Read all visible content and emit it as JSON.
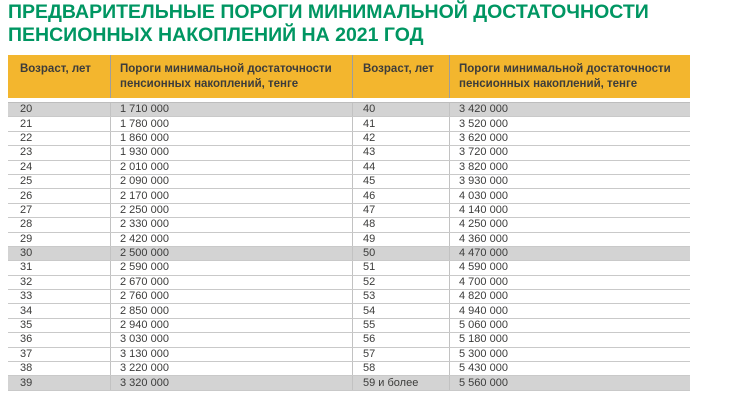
{
  "title": "ПРЕДВАРИТЕЛЬНЫЕ ПОРОГИ МИНИМАЛЬНОЙ ДОСТАТОЧНОСТИ ПЕНСИОННЫХ НАКОПЛЕНИЙ НА 2021 ГОД",
  "colors": {
    "title_green": "#009662",
    "header_yellow": "#F3B62E",
    "highlight_gray": "#D3D3D3",
    "text_dark": "#3C3C3B"
  },
  "table": {
    "headers": [
      "Возраст, лет",
      "Пороги минимальной достаточности пенсионных накоплений, тенге",
      "Возраст, лет",
      "Пороги минимальной достаточности пенсионных накоплений, тенге"
    ],
    "rows": [
      {
        "age_left": "20",
        "threshold_left": "1 710 000",
        "age_right": "40",
        "threshold_right": "3 420 000",
        "highlighted": true
      },
      {
        "age_left": "21",
        "threshold_left": "1 780 000",
        "age_right": "41",
        "threshold_right": "3 520 000",
        "highlighted": false
      },
      {
        "age_left": "22",
        "threshold_left": "1 860 000",
        "age_right": "42",
        "threshold_right": "3 620 000",
        "highlighted": false
      },
      {
        "age_left": "23",
        "threshold_left": "1 930 000",
        "age_right": "43",
        "threshold_right": "3 720 000",
        "highlighted": false
      },
      {
        "age_left": "24",
        "threshold_left": "2 010 000",
        "age_right": "44",
        "threshold_right": "3 820 000",
        "highlighted": false
      },
      {
        "age_left": "25",
        "threshold_left": "2 090 000",
        "age_right": "45",
        "threshold_right": "3 930 000",
        "highlighted": false
      },
      {
        "age_left": "26",
        "threshold_left": "2 170 000",
        "age_right": "46",
        "threshold_right": "4 030 000",
        "highlighted": false
      },
      {
        "age_left": "27",
        "threshold_left": "2 250 000",
        "age_right": "47",
        "threshold_right": "4 140 000",
        "highlighted": false
      },
      {
        "age_left": "28",
        "threshold_left": "2 330 000",
        "age_right": "48",
        "threshold_right": "4 250 000",
        "highlighted": false
      },
      {
        "age_left": "29",
        "threshold_left": "2 420 000",
        "age_right": "49",
        "threshold_right": "4 360 000",
        "highlighted": false
      },
      {
        "age_left": "30",
        "threshold_left": "2 500 000",
        "age_right": "50",
        "threshold_right": "4 470 000",
        "highlighted": true
      },
      {
        "age_left": "31",
        "threshold_left": "2 590 000",
        "age_right": "51",
        "threshold_right": "4 590 000",
        "highlighted": false
      },
      {
        "age_left": "32",
        "threshold_left": "2 670 000",
        "age_right": "52",
        "threshold_right": "4 700 000",
        "highlighted": false
      },
      {
        "age_left": "33",
        "threshold_left": "2 760 000",
        "age_right": "53",
        "threshold_right": "4 820 000",
        "highlighted": false
      },
      {
        "age_left": "34",
        "threshold_left": "2 850 000",
        "age_right": "54",
        "threshold_right": "4 940 000",
        "highlighted": false
      },
      {
        "age_left": "35",
        "threshold_left": "2 940 000",
        "age_right": "55",
        "threshold_right": "5 060 000",
        "highlighted": false
      },
      {
        "age_left": "36",
        "threshold_left": "3 030 000",
        "age_right": "56",
        "threshold_right": "5 180 000",
        "highlighted": false
      },
      {
        "age_left": "37",
        "threshold_left": "3 130 000",
        "age_right": "57",
        "threshold_right": "5 300 000",
        "highlighted": false
      },
      {
        "age_left": "38",
        "threshold_left": "3 220 000",
        "age_right": "58",
        "threshold_right": "5 430 000",
        "highlighted": false
      },
      {
        "age_left": "39",
        "threshold_left": "3 320 000",
        "age_right": "59 и более",
        "threshold_right": "5 560 000",
        "highlighted": true
      }
    ]
  }
}
